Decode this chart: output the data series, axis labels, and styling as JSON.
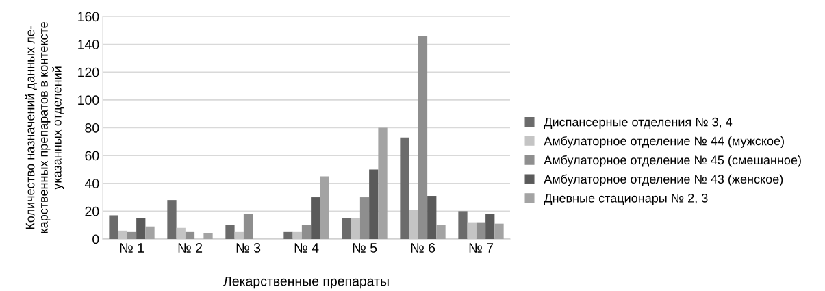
{
  "chart_data": {
    "type": "bar",
    "xlabel": "Лекарственные препараты",
    "ylabel": "Количество назначений данных ле-\nкарственных препаратов в контексте\nуказанных отделений",
    "categories": [
      "№ 1",
      "№ 2",
      "№ 3",
      "№ 4",
      "№ 5",
      "№ 6",
      "№ 7"
    ],
    "series": [
      {
        "name": "Диспансерные отделения № 3, 4",
        "color": "#6b6b6b",
        "values": [
          17,
          28,
          10,
          5,
          15,
          73,
          20
        ]
      },
      {
        "name": "Амбулаторное отделение № 44 (мужское)",
        "color": "#c4c4c4",
        "values": [
          6,
          8,
          5,
          5,
          15,
          21,
          12
        ]
      },
      {
        "name": "Амбулаторное отделение № 45 (смешанное)",
        "color": "#8e8e8e",
        "values": [
          5,
          5,
          18,
          10,
          30,
          146,
          12
        ]
      },
      {
        "name": "Амбулаторное отделение № 43 (женское)",
        "color": "#5a5a5a",
        "values": [
          15,
          0,
          0,
          30,
          50,
          31,
          18
        ]
      },
      {
        "name": "Дневные стационары № 2, 3",
        "color": "#a3a3a3",
        "values": [
          9,
          4,
          0,
          45,
          80,
          10,
          11
        ]
      }
    ],
    "ylim": [
      0,
      160
    ],
    "yticks": [
      0,
      20,
      40,
      60,
      80,
      100,
      120,
      140,
      160
    ],
    "grid": "y",
    "legend": "right"
  }
}
